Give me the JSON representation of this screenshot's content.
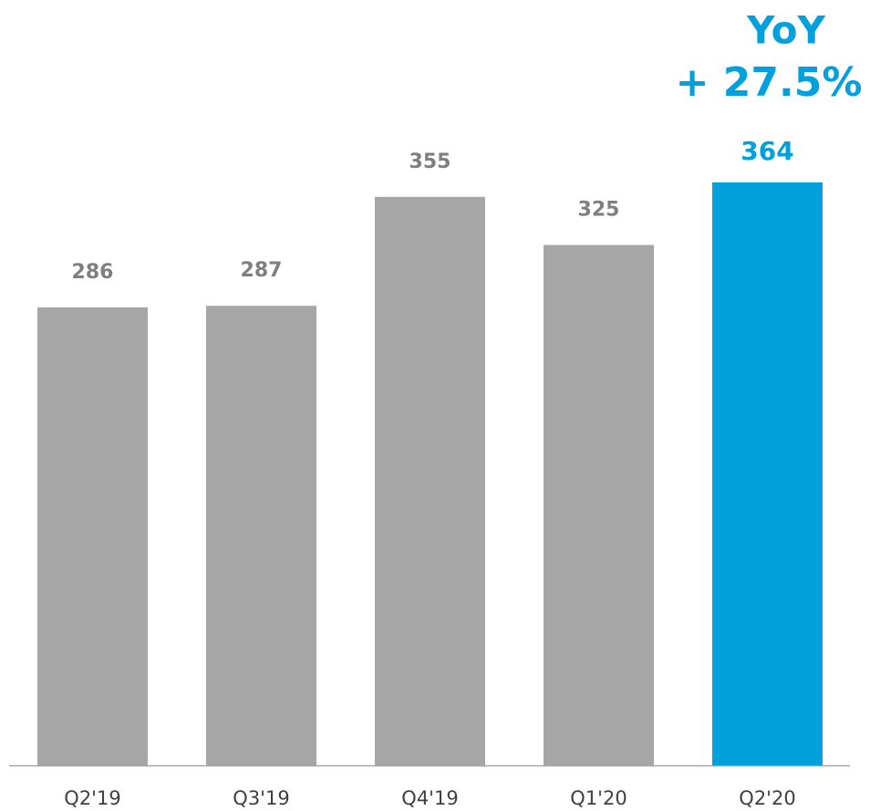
{
  "chart_data": {
    "type": "bar",
    "categories": [
      "Q2'19",
      "Q3'19",
      "Q4'19",
      "Q1'20",
      "Q2'20"
    ],
    "values": [
      286,
      287,
      355,
      325,
      364
    ],
    "colors": [
      "#a6a6a6",
      "#a6a6a6",
      "#a6a6a6",
      "#a6a6a6",
      "#00a0dc"
    ],
    "label_colors": [
      "#7f7f7f",
      "#7f7f7f",
      "#7f7f7f",
      "#7f7f7f",
      "#00a0dc"
    ],
    "annotations": [
      "YoY",
      "+ 27.5%"
    ]
  }
}
